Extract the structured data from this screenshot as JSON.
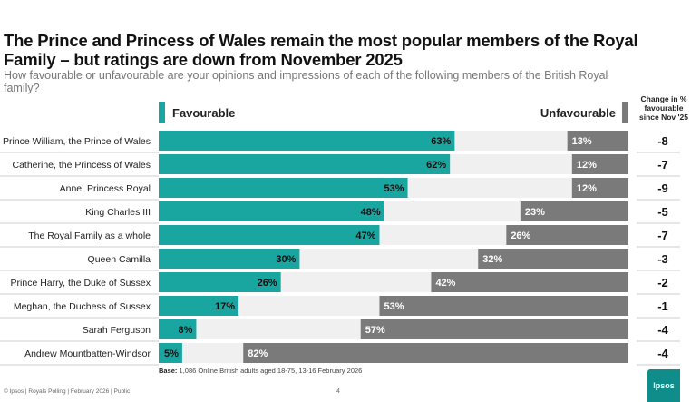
{
  "title": "The Prince and Princess of Wales remain the most popular members of the Royal Family – but ratings are down from November 2025",
  "subtitle": "How favourable or unfavourable are your opinions and impressions of each of the following members of the British Royal family?",
  "legend": {
    "favourable": "Favourable",
    "unfavourable": "Unfavourable"
  },
  "change_header": "Change in % favourable since Nov '25",
  "base": {
    "label": "Base:",
    "text": "1,086 Online British adults aged 18-75, 13-16 February 2026"
  },
  "footer": "© Ipsos | Royals Polling | February 2026 | Public",
  "page_number": "4",
  "logo_text": "Ipsos",
  "colors": {
    "favourable": "#1aa6a0",
    "unfavourable": "#7a7a7a",
    "track": "#f0f0f0",
    "separator": "#bdbdbd"
  },
  "chart_data": {
    "type": "bar",
    "orientation": "horizontal-diverging",
    "categories": [
      "Prince William, the Prince of Wales",
      "Catherine, the Princess of Wales",
      "Anne, Princess Royal",
      "King Charles III",
      "The Royal Family as a whole",
      "Queen Camilla",
      "Prince Harry, the Duke of Sussex",
      "Meghan, the Duchess of Sussex",
      "Sarah Ferguson",
      "Andrew Mountbatten-Windsor"
    ],
    "series": [
      {
        "name": "Favourable",
        "values": [
          63,
          62,
          53,
          48,
          47,
          30,
          26,
          17,
          8,
          5
        ]
      },
      {
        "name": "Unfavourable",
        "values": [
          13,
          12,
          12,
          23,
          26,
          32,
          42,
          53,
          57,
          82
        ]
      }
    ],
    "change_in_favourable": [
      "-8",
      "-7",
      "-9",
      "-5",
      "-7",
      "-3",
      "-2",
      "-1",
      "-4",
      "-4"
    ],
    "xlim": [
      0,
      100
    ],
    "unit": "%"
  }
}
